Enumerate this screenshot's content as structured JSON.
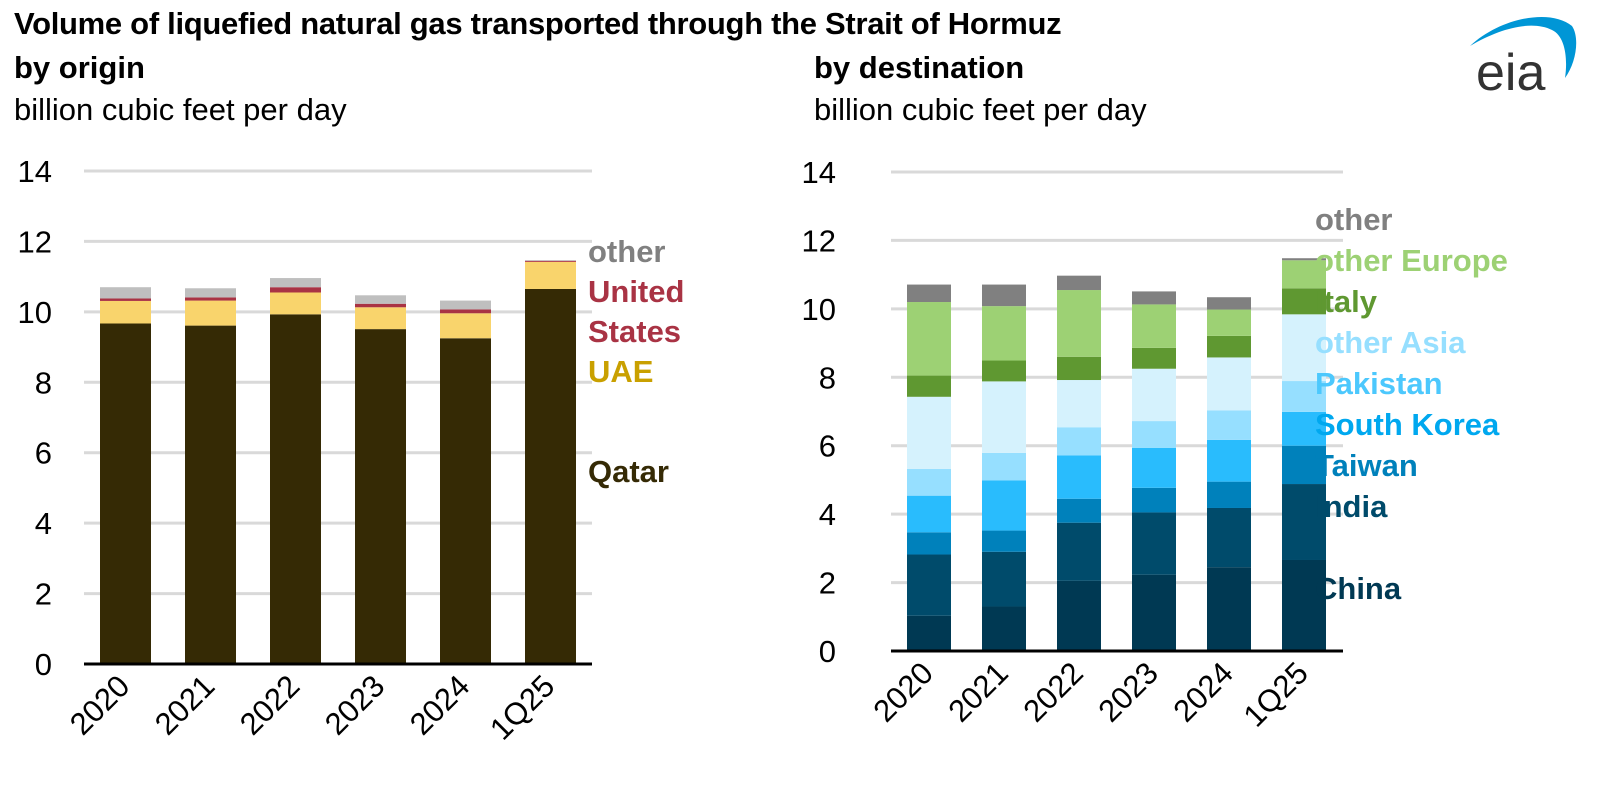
{
  "title": "Volume of liquefied natural gas transported through the Strait of Hormuz",
  "logo": {
    "text": "eia",
    "text_color": "#333333",
    "swoosh_color": "#0096d6"
  },
  "chart_data": [
    {
      "type": "bar",
      "stacked": true,
      "title": "by origin",
      "ylabel": "billion cubic feet per day",
      "xlabel": "",
      "ylim": [
        0,
        14
      ],
      "yticks": [
        0,
        2,
        4,
        6,
        8,
        10,
        12,
        14
      ],
      "grid": true,
      "legend_position": "right",
      "categories": [
        "2020",
        "2021",
        "2022",
        "2023",
        "2024",
        "1Q25"
      ],
      "series": [
        {
          "name": "Qatar",
          "color": "#352a05",
          "label_color": "#352a05",
          "values": [
            9.67,
            9.61,
            9.93,
            9.51,
            9.25,
            10.65
          ]
        },
        {
          "name": "UAE",
          "color": "#f9d46c",
          "label_color": "#c9a000",
          "values": [
            0.64,
            0.71,
            0.62,
            0.62,
            0.71,
            0.77
          ]
        },
        {
          "name": "United States",
          "color": "#a93344",
          "label_color": "#a93344",
          "values": [
            0.07,
            0.09,
            0.15,
            0.1,
            0.11,
            0.03
          ]
        },
        {
          "name": "other",
          "color": "#bfbfbf",
          "label_color": "#808080",
          "values": [
            0.32,
            0.26,
            0.26,
            0.24,
            0.25,
            0.02
          ]
        }
      ],
      "legend": [
        {
          "lines": [
            "other"
          ],
          "color": "#808080"
        },
        {
          "lines": [
            "United",
            "States"
          ],
          "color": "#a93344"
        },
        {
          "lines": [
            "UAE"
          ],
          "color": "#c9a000"
        },
        {
          "lines": [
            "Qatar"
          ],
          "color": "#352a05"
        }
      ]
    },
    {
      "type": "bar",
      "stacked": true,
      "title": "by destination",
      "ylabel": "billion cubic feet per day",
      "xlabel": "",
      "ylim": [
        0,
        14
      ],
      "yticks": [
        0,
        2,
        4,
        6,
        8,
        10,
        12,
        14
      ],
      "grid": true,
      "legend_position": "right",
      "categories": [
        "2020",
        "2021",
        "2022",
        "2023",
        "2024",
        "1Q25"
      ],
      "series": [
        {
          "name": "China",
          "color": "#003953",
          "values": [
            1.03,
            1.3,
            2.05,
            2.23,
            2.45,
            2.66
          ]
        },
        {
          "name": "India",
          "color": "#004b6b",
          "values": [
            1.79,
            1.6,
            1.7,
            1.82,
            1.73,
            2.22
          ]
        },
        {
          "name": "Taiwan",
          "color": "#0081bb",
          "values": [
            0.65,
            0.62,
            0.7,
            0.72,
            0.77,
            1.12
          ]
        },
        {
          "name": "South Korea",
          "color": "#29bcfd",
          "values": [
            1.07,
            1.47,
            1.27,
            1.17,
            1.22,
            0.99
          ]
        },
        {
          "name": "Pakistan",
          "color": "#96dfff",
          "values": [
            0.78,
            0.8,
            0.82,
            0.78,
            0.86,
            0.9
          ]
        },
        {
          "name": "other Asia",
          "color": "#d5f2fd",
          "values": [
            2.11,
            2.09,
            1.38,
            1.53,
            1.55,
            1.95
          ]
        },
        {
          "name": "Italy",
          "color": "#5f9831",
          "values": [
            0.62,
            0.61,
            0.68,
            0.61,
            0.63,
            0.76
          ]
        },
        {
          "name": "other Europe",
          "color": "#9dd174",
          "values": [
            2.15,
            1.59,
            1.95,
            1.27,
            0.77,
            0.82
          ]
        },
        {
          "name": "other",
          "color": "#808080",
          "values": [
            0.51,
            0.63,
            0.42,
            0.38,
            0.36,
            0.06
          ]
        }
      ],
      "legend": [
        {
          "lines": [
            "other"
          ],
          "color": "#808080"
        },
        {
          "lines": [
            "other Europe"
          ],
          "color": "#9dd174"
        },
        {
          "lines": [
            "Italy"
          ],
          "color": "#5f9831"
        },
        {
          "lines": [
            "other Asia"
          ],
          "color": "#96dfff"
        },
        {
          "lines": [
            "Pakistan"
          ],
          "color": "#4cc8fd"
        },
        {
          "lines": [
            "South Korea"
          ],
          "color": "#00a8ef"
        },
        {
          "lines": [
            "Taiwan"
          ],
          "color": "#0081bb"
        },
        {
          "lines": [
            "India"
          ],
          "color": "#004b6b"
        },
        {
          "lines": [
            "China"
          ],
          "color": "#003953"
        }
      ]
    }
  ]
}
